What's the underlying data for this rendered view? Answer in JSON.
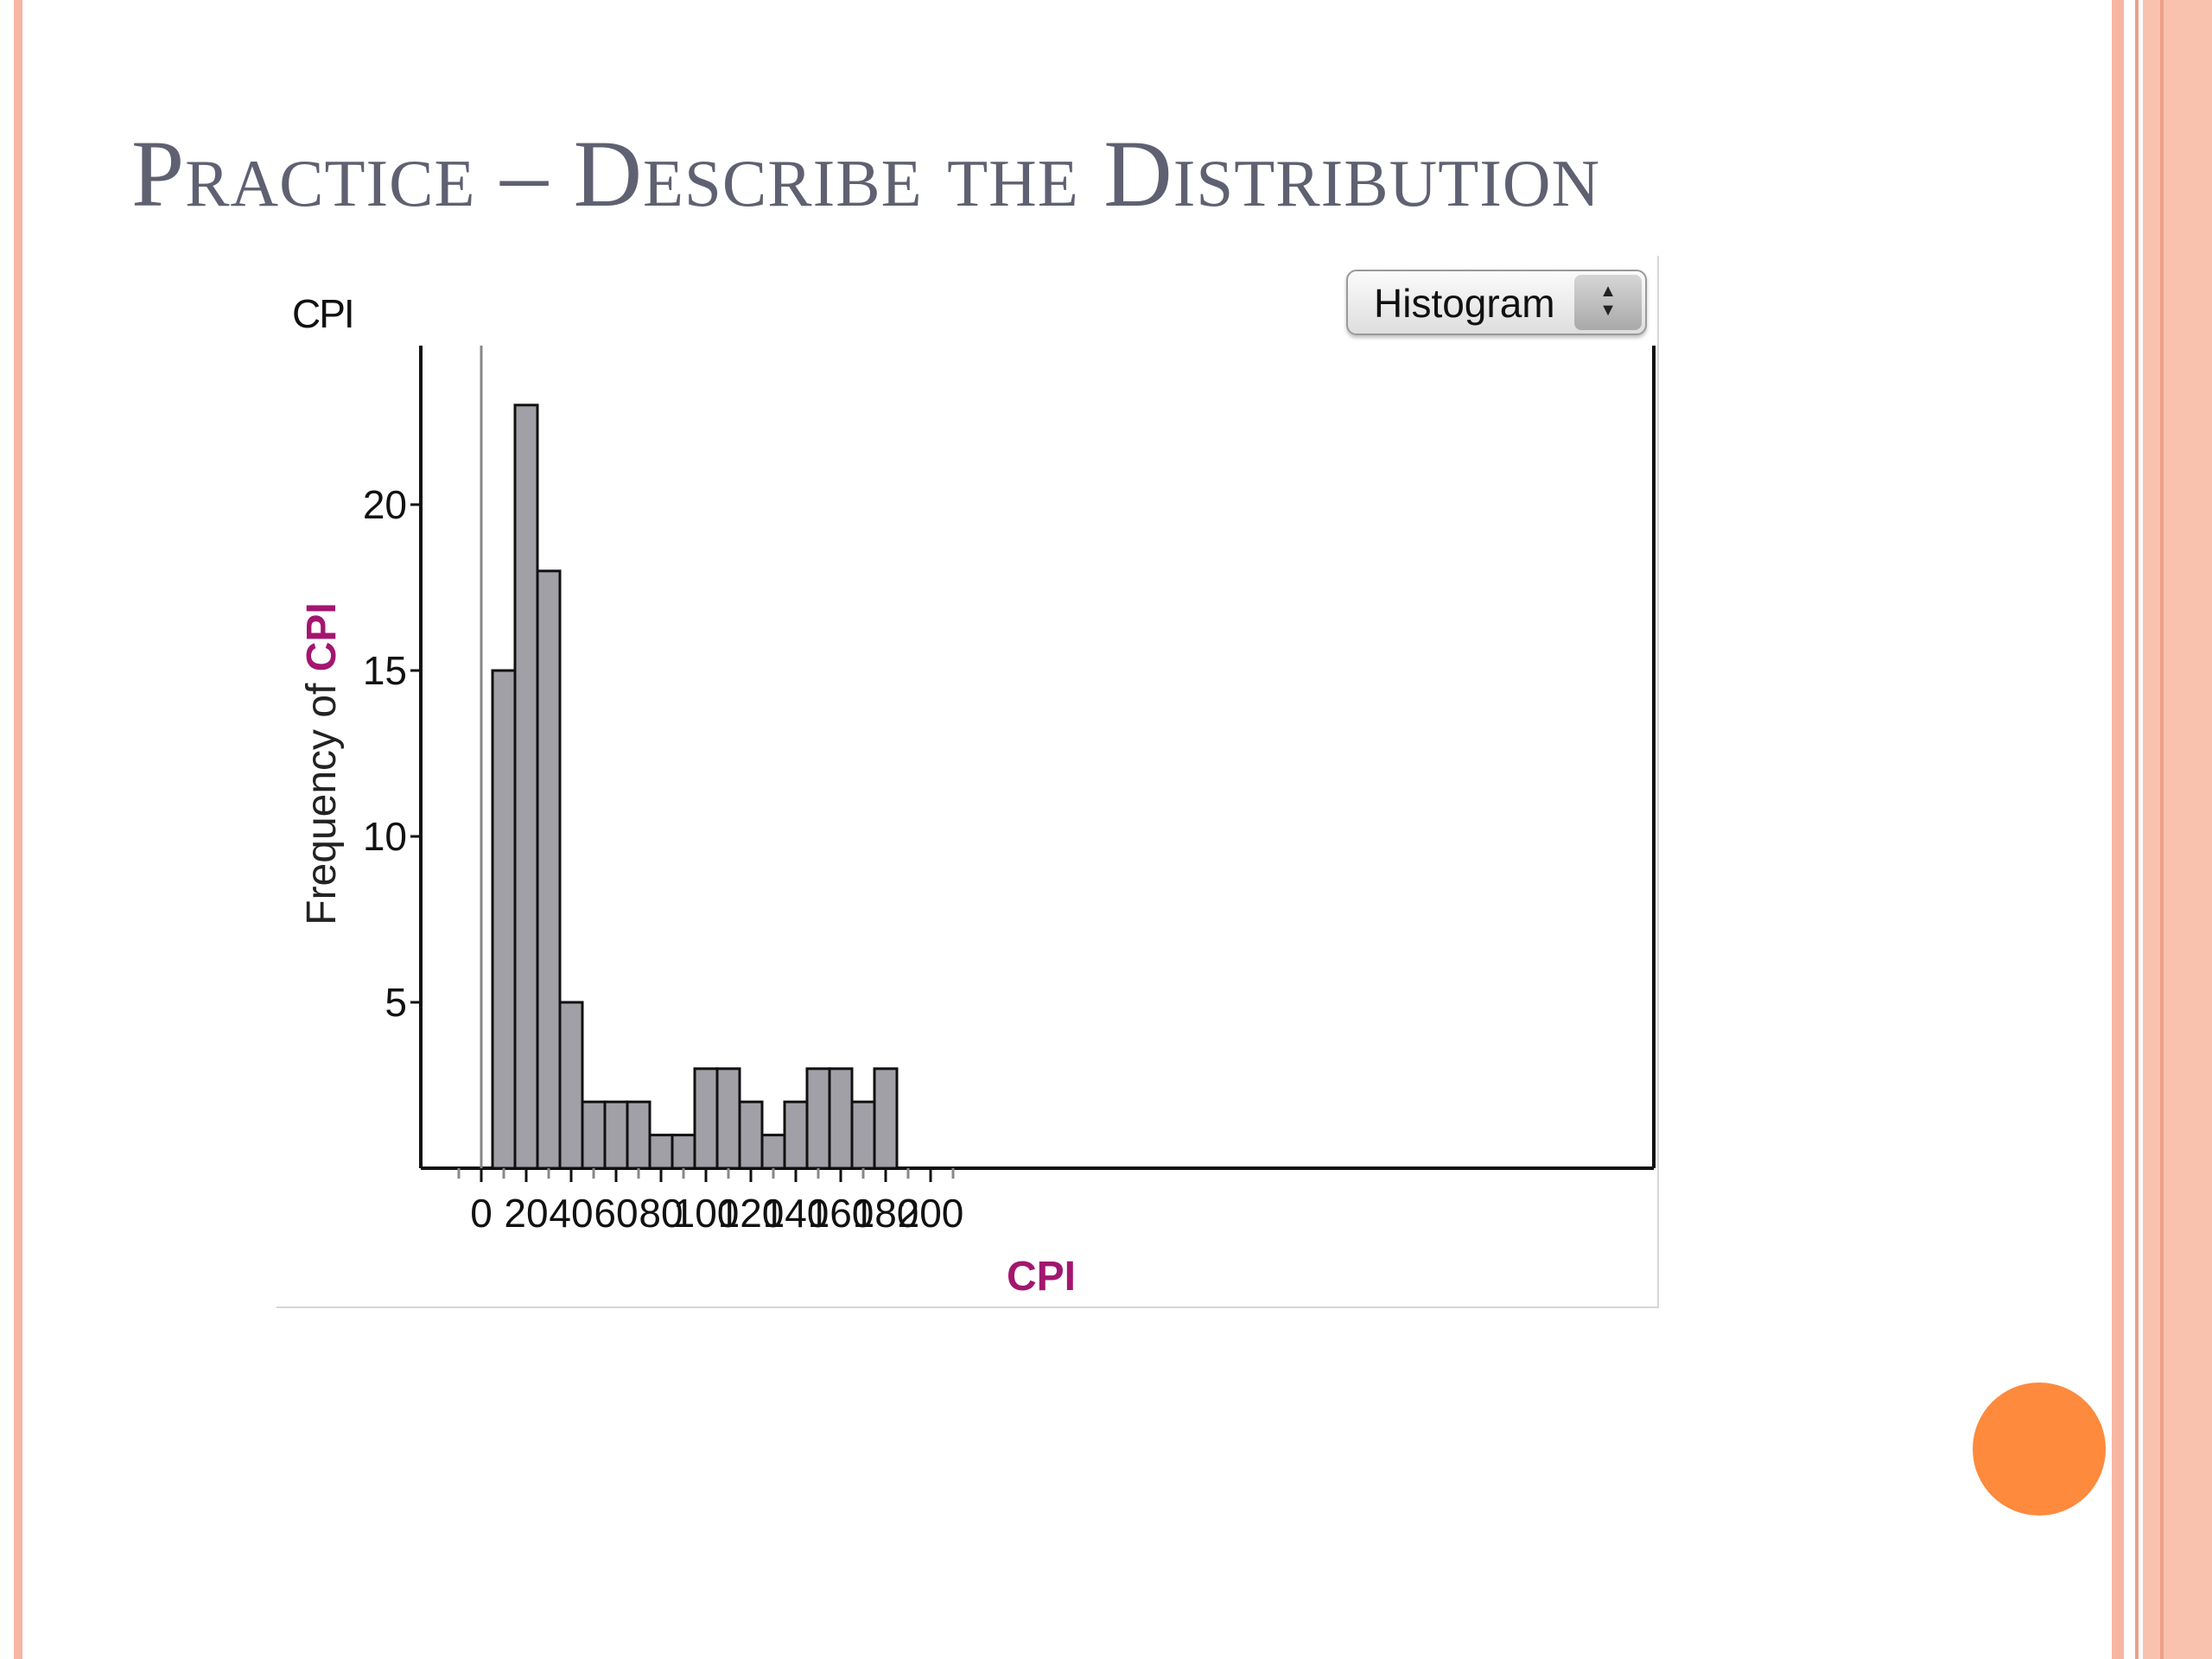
{
  "slide": {
    "title": "Practice – Describe the Distribution"
  },
  "chart_panel": {
    "label": "CPI",
    "selector": {
      "value": "Histogram",
      "icon": "up-down-arrows-icon"
    }
  },
  "chart_data": {
    "type": "bar",
    "subtype": "histogram",
    "xlabel": "CPI",
    "ylabel": "Frequency of CPI",
    "xlim": [
      -10,
      210
    ],
    "ylim": [
      0,
      25
    ],
    "x_ticks": [
      0,
      20,
      40,
      60,
      80,
      100,
      120,
      140,
      160,
      180,
      200
    ],
    "y_ticks": [
      5,
      10,
      15,
      20
    ],
    "bin_width": 10,
    "bins": [
      {
        "start": 5,
        "end": 15,
        "count": 15
      },
      {
        "start": 15,
        "end": 25,
        "count": 23
      },
      {
        "start": 25,
        "end": 35,
        "count": 18
      },
      {
        "start": 35,
        "end": 45,
        "count": 5
      },
      {
        "start": 45,
        "end": 55,
        "count": 2
      },
      {
        "start": 55,
        "end": 65,
        "count": 2
      },
      {
        "start": 65,
        "end": 75,
        "count": 2
      },
      {
        "start": 75,
        "end": 85,
        "count": 1
      },
      {
        "start": 85,
        "end": 95,
        "count": 1
      },
      {
        "start": 95,
        "end": 105,
        "count": 3
      },
      {
        "start": 105,
        "end": 115,
        "count": 3
      },
      {
        "start": 115,
        "end": 125,
        "count": 2
      },
      {
        "start": 125,
        "end": 135,
        "count": 1
      },
      {
        "start": 135,
        "end": 145,
        "count": 2
      },
      {
        "start": 145,
        "end": 155,
        "count": 3
      },
      {
        "start": 155,
        "end": 165,
        "count": 3
      },
      {
        "start": 165,
        "end": 175,
        "count": 2
      },
      {
        "start": 175,
        "end": 185,
        "count": 3
      }
    ],
    "grid": false,
    "reference_line_x": 0
  },
  "colors": {
    "bar_fill": "#a0a0a6",
    "bar_stroke": "#111111",
    "axis_label_accent": "#a3166f",
    "title": "#5f6172",
    "accent_dot": "#fd8a3d"
  }
}
